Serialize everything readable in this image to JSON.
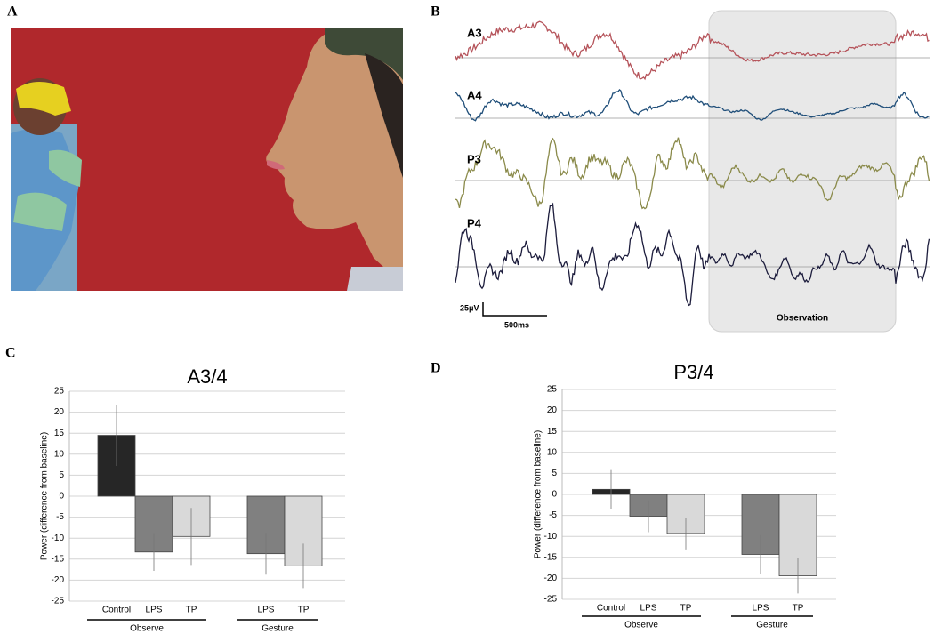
{
  "panel_labels": [
    "A",
    "B",
    "C",
    "D"
  ],
  "eeg": {
    "channels": [
      "A3",
      "A4",
      "P3",
      "P4"
    ],
    "amplitude_scale": "25μV",
    "time_scale": "500ms",
    "shaded_label": "Observation"
  },
  "chart_data": [
    {
      "type": "bar",
      "title": "A3/4",
      "y_label": "Power (difference from baseline)",
      "ylim": [
        -25,
        25
      ],
      "yticks": [
        -25,
        -20,
        -15,
        -10,
        -5,
        0,
        5,
        10,
        15,
        20,
        25
      ],
      "grid": true,
      "groups": [
        {
          "name": "Observe",
          "categories": [
            "Control",
            "LPS",
            "TP"
          ],
          "values": [
            14.5,
            -13.3,
            -9.6
          ],
          "errors": [
            7.3,
            4.5,
            6.8
          ],
          "colors": [
            "#262626",
            "#808080",
            "#d9d9d9"
          ]
        },
        {
          "name": "Gesture",
          "categories": [
            "LPS",
            "TP"
          ],
          "values": [
            -13.7,
            -16.6
          ],
          "errors": [
            5.0,
            5.3
          ],
          "colors": [
            "#808080",
            "#d9d9d9"
          ]
        }
      ]
    },
    {
      "type": "bar",
      "title": "P3/4",
      "y_label": "Power (difference from baseline)",
      "ylim": [
        -25,
        25
      ],
      "yticks": [
        -25,
        -20,
        -15,
        -10,
        -5,
        0,
        5,
        10,
        15,
        20,
        25
      ],
      "grid": true,
      "groups": [
        {
          "name": "Observe",
          "categories": [
            "Control",
            "LPS",
            "TP"
          ],
          "values": [
            1.2,
            -5.2,
            -9.3
          ],
          "errors": [
            4.6,
            3.8,
            3.8
          ],
          "colors": [
            "#262626",
            "#808080",
            "#d9d9d9"
          ]
        },
        {
          "name": "Gesture",
          "categories": [
            "LPS",
            "TP"
          ],
          "values": [
            -14.3,
            -19.4
          ],
          "errors": [
            4.6,
            4.2
          ],
          "colors": [
            "#808080",
            "#d9d9d9"
          ]
        }
      ]
    }
  ]
}
